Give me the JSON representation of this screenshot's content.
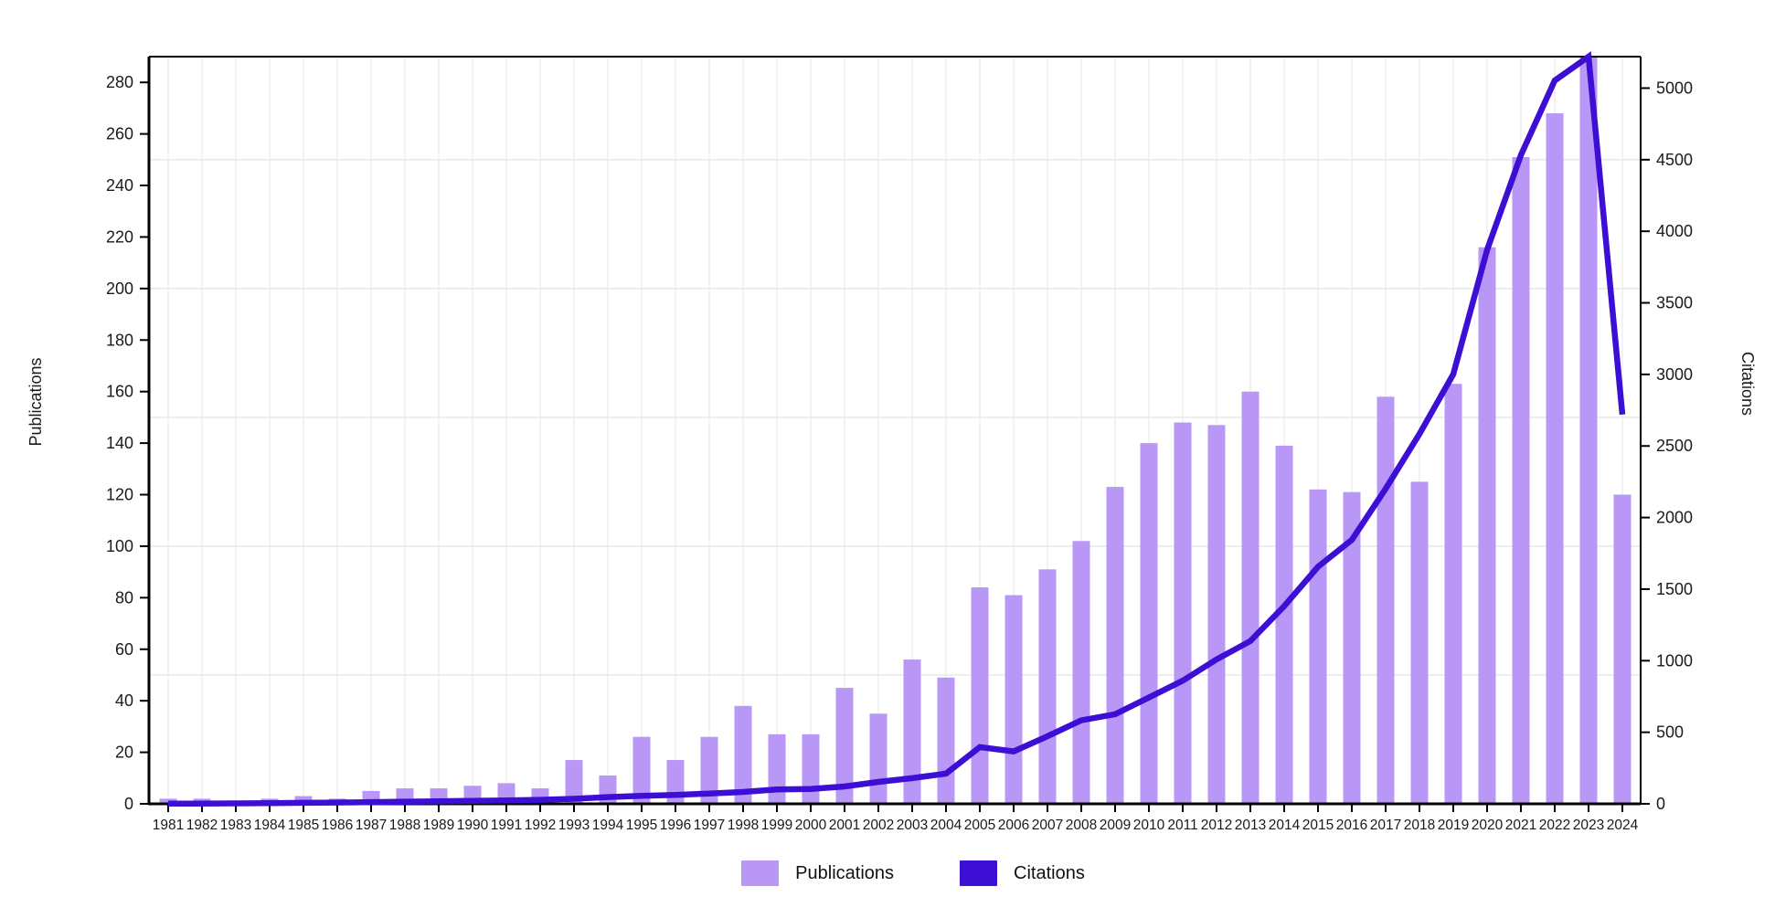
{
  "chart_data": {
    "type": "bar",
    "x": [
      1981,
      1982,
      1983,
      1984,
      1985,
      1986,
      1987,
      1988,
      1989,
      1990,
      1991,
      1992,
      1993,
      1994,
      1995,
      1996,
      1997,
      1998,
      1999,
      2000,
      2001,
      2002,
      2003,
      2004,
      2005,
      2006,
      2007,
      2008,
      2009,
      2010,
      2011,
      2012,
      2013,
      2014,
      2015,
      2016,
      2017,
      2018,
      2019,
      2020,
      2021,
      2022,
      2023,
      2024
    ],
    "series": [
      {
        "name": "Publications",
        "type": "bar",
        "axis": "left",
        "color": "#b897f7",
        "values": [
          2,
          2,
          1,
          2,
          3,
          2,
          5,
          6,
          6,
          7,
          8,
          6,
          17,
          11,
          26,
          17,
          26,
          38,
          27,
          27,
          45,
          35,
          56,
          49,
          84,
          81,
          91,
          102,
          123,
          140,
          148,
          147,
          160,
          139,
          122,
          121,
          158,
          125,
          163,
          216,
          251,
          268,
          290,
          120
        ]
      },
      {
        "name": "Citations",
        "type": "line",
        "axis": "right",
        "color": "#3d0ed3",
        "values": [
          1,
          2,
          3,
          5,
          7,
          9,
          12,
          15,
          18,
          21,
          24,
          28,
          35,
          47,
          56,
          62,
          72,
          83,
          100,
          104,
          121,
          153,
          179,
          211,
          396,
          366,
          472,
          583,
          626,
          743,
          860,
          1009,
          1137,
          1381,
          1656,
          1844,
          2201,
          2584,
          3001,
          3870,
          4532,
          5053,
          5220,
          2720
        ]
      }
    ],
    "left_axis": {
      "label": "Publications",
      "range": [
        0,
        290
      ],
      "ticks": [
        0,
        20,
        40,
        60,
        80,
        100,
        120,
        140,
        160,
        180,
        200,
        220,
        240,
        260,
        280
      ],
      "gridlines": [
        50,
        100,
        150,
        200,
        250
      ]
    },
    "right_axis": {
      "label": "Citations",
      "range": [
        0,
        5220
      ],
      "ticks": [
        0,
        500,
        1000,
        1500,
        2000,
        2500,
        3000,
        3500,
        4000,
        4500,
        5000
      ]
    },
    "legend": {
      "position": "bottom",
      "entries": [
        "Publications",
        "Citations"
      ]
    },
    "grid_on": true,
    "title": ""
  }
}
